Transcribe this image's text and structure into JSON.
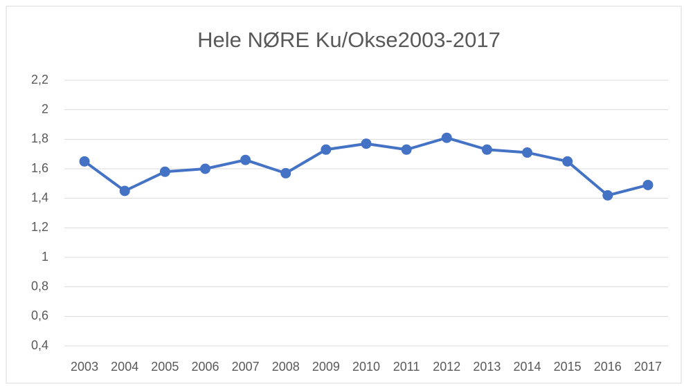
{
  "chart_data": {
    "type": "line",
    "title": "Hele NØRE Ku/Okse2003-2017",
    "categories": [
      "2003",
      "2004",
      "2005",
      "2006",
      "2007",
      "2008",
      "2009",
      "2010",
      "2011",
      "2012",
      "2013",
      "2014",
      "2015",
      "2016",
      "2017"
    ],
    "series": [
      {
        "name": "Ku/Okse",
        "color": "#4472c4",
        "values": [
          1.65,
          1.45,
          1.58,
          1.6,
          1.66,
          1.57,
          1.73,
          1.77,
          1.73,
          1.81,
          1.73,
          1.71,
          1.65,
          1.42,
          1.49
        ]
      }
    ],
    "ylim": [
      0.4,
      2.2
    ],
    "yticks": [
      {
        "value": 0.4,
        "label": "0,4"
      },
      {
        "value": 0.6,
        "label": "0,6"
      },
      {
        "value": 0.8,
        "label": "0,8"
      },
      1,
      {
        "value": 1.2,
        "label": "1,2"
      },
      {
        "value": 1.4,
        "label": "1,4"
      },
      {
        "value": 1.6,
        "label": "1,6"
      },
      {
        "value": 1.8,
        "label": "1,8"
      },
      2,
      {
        "value": 2.2,
        "label": "2,2"
      }
    ],
    "grid": true
  }
}
